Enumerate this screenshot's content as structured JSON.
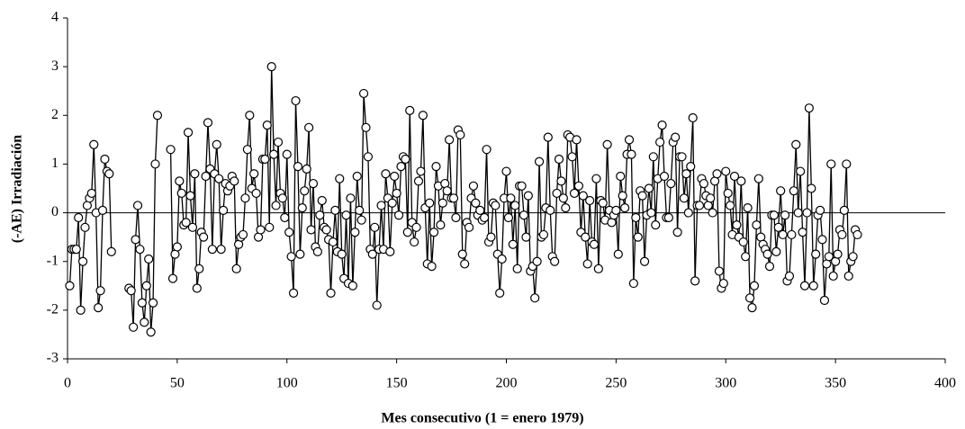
{
  "chart_data": {
    "type": "line",
    "xlabel": "Mes consecutivo (1 = enero 1979)",
    "ylabel": "(-AE) Irradiación",
    "color": "#000000",
    "xlim": [
      0,
      400
    ],
    "xticks": [
      0,
      50,
      100,
      150,
      200,
      250,
      300,
      350,
      400
    ],
    "ylim": [
      -3,
      4
    ],
    "yticks": [
      -3,
      -2,
      -1,
      0,
      1,
      2,
      3,
      4
    ],
    "x": [
      1,
      2,
      3,
      4,
      5,
      6,
      7,
      8,
      9,
      10,
      11,
      12,
      13,
      14,
      15,
      16,
      17,
      18,
      19,
      20,
      21,
      22,
      23,
      24,
      25,
      26,
      27,
      28,
      29,
      30,
      31,
      32,
      33,
      34,
      35,
      36,
      37,
      38,
      39,
      40,
      41,
      42,
      43,
      44,
      45,
      46,
      47,
      48,
      49,
      50,
      51,
      52,
      53,
      54,
      55,
      56,
      57,
      58,
      59,
      60,
      61,
      62,
      63,
      64,
      65,
      66,
      67,
      68,
      69,
      70,
      71,
      72,
      73,
      74,
      75,
      76,
      77,
      78,
      79,
      80,
      81,
      82,
      83,
      84,
      85,
      86,
      87,
      88,
      89,
      90,
      91,
      92,
      93,
      94,
      95,
      96,
      97,
      98,
      99,
      100,
      101,
      102,
      103,
      104,
      105,
      106,
      107,
      108,
      109,
      110,
      111,
      112,
      113,
      114,
      115,
      116,
      117,
      118,
      119,
      120,
      121,
      122,
      123,
      124,
      125,
      126,
      127,
      128,
      129,
      130,
      131,
      132,
      133,
      134,
      135,
      136,
      137,
      138,
      139,
      140,
      141,
      142,
      143,
      144,
      145,
      146,
      147,
      148,
      149,
      150,
      151,
      152,
      153,
      154,
      155,
      156,
      157,
      158,
      159,
      160,
      161,
      162,
      163,
      164,
      165,
      166,
      167,
      168,
      169,
      170,
      171,
      172,
      173,
      174,
      175,
      176,
      177,
      178,
      179,
      180,
      181,
      182,
      183,
      184,
      185,
      186,
      187,
      188,
      189,
      190,
      191,
      192,
      193,
      194,
      195,
      196,
      197,
      198,
      199,
      200,
      201,
      202,
      203,
      204,
      205,
      206,
      207,
      208,
      209,
      210,
      211,
      212,
      213,
      214,
      215,
      216,
      217,
      218,
      219,
      220,
      221,
      222,
      223,
      224,
      225,
      226,
      227,
      228,
      229,
      230,
      231,
      232,
      233,
      234,
      235,
      236,
      237,
      238,
      239,
      240,
      241,
      242,
      243,
      244,
      245,
      246,
      247,
      248,
      249,
      250,
      251,
      252,
      253,
      254,
      255,
      256,
      257,
      258,
      259,
      260,
      261,
      262,
      263,
      264,
      265,
      266,
      267,
      268,
      269,
      270,
      271,
      272,
      273,
      274,
      275,
      276,
      277,
      278,
      279,
      280,
      281,
      282,
      283,
      284,
      285,
      286,
      287,
      288,
      289,
      290,
      291,
      292,
      293,
      294,
      295,
      296,
      297,
      298,
      299,
      300,
      301,
      302,
      303,
      304,
      305,
      306,
      307,
      308,
      309,
      310,
      311,
      312,
      313,
      314,
      315,
      316,
      317,
      318,
      319,
      320,
      321,
      322,
      323,
      324,
      325,
      326,
      327,
      328,
      329,
      330,
      331,
      332,
      333,
      334,
      335,
      336,
      337,
      338,
      339,
      340,
      341,
      342,
      343,
      344,
      345,
      346,
      347,
      348,
      349,
      350,
      351,
      352,
      353,
      354,
      355,
      356,
      357,
      358,
      359,
      360
    ],
    "values": [
      -1.5,
      -0.75,
      -0.75,
      -0.75,
      -0.1,
      -2.0,
      -1.0,
      -0.3,
      0.15,
      0.3,
      0.4,
      1.4,
      0.0,
      -1.95,
      -1.6,
      0.05,
      1.1,
      0.85,
      0.8,
      -0.8,
      null,
      null,
      null,
      null,
      null,
      null,
      null,
      -1.55,
      -1.6,
      -2.35,
      -0.55,
      0.15,
      -0.75,
      -1.85,
      -2.25,
      -1.5,
      -0.95,
      -2.45,
      -1.85,
      1.0,
      2.0,
      null,
      null,
      null,
      null,
      null,
      1.3,
      -1.35,
      -0.85,
      -0.7,
      0.65,
      0.4,
      -0.25,
      -0.2,
      1.65,
      0.35,
      -0.3,
      0.8,
      -1.55,
      -1.15,
      -0.4,
      -0.5,
      0.75,
      1.85,
      0.9,
      -0.75,
      0.8,
      1.4,
      0.7,
      -0.75,
      0.05,
      0.6,
      0.45,
      0.55,
      0.75,
      0.65,
      -1.15,
      -0.65,
      -0.5,
      -0.45,
      0.3,
      1.3,
      2.0,
      0.5,
      0.8,
      0.4,
      -0.5,
      -0.35,
      1.1,
      1.1,
      1.8,
      -0.3,
      3.0,
      1.2,
      0.15,
      1.45,
      0.4,
      0.3,
      -0.1,
      1.2,
      -0.4,
      -0.9,
      -1.65,
      2.3,
      0.95,
      -0.85,
      0.1,
      0.45,
      0.9,
      1.75,
      -0.35,
      0.6,
      -0.7,
      -0.8,
      -0.05,
      0.25,
      -0.3,
      -0.35,
      -0.55,
      -1.65,
      -0.6,
      0.05,
      -0.8,
      0.7,
      -0.85,
      -1.35,
      -0.05,
      -1.45,
      0.3,
      -1.5,
      -0.4,
      0.75,
      0.05,
      -0.15,
      2.45,
      1.75,
      1.15,
      -0.75,
      -0.85,
      -0.3,
      -1.9,
      -0.75,
      0.15,
      -0.75,
      0.8,
      0.3,
      -0.8,
      0.2,
      0.75,
      0.4,
      -0.05,
      0.95,
      1.15,
      1.1,
      -0.4,
      2.1,
      -0.2,
      -0.6,
      -0.3,
      0.65,
      0.85,
      2.0,
      0.1,
      -1.05,
      0.2,
      -1.1,
      -0.4,
      0.95,
      0.55,
      -0.25,
      0.2,
      0.6,
      0.45,
      1.5,
      0.3,
      0.3,
      -0.1,
      1.7,
      1.6,
      -0.85,
      -1.05,
      -0.2,
      -0.3,
      0.3,
      0.55,
      0.2,
      -0.05,
      0.05,
      -0.15,
      -0.1,
      1.3,
      -0.6,
      -0.5,
      0.2,
      0.15,
      -0.85,
      -1.65,
      -0.95,
      0.3,
      0.85,
      -0.1,
      0.3,
      -0.65,
      0.15,
      -1.15,
      0.55,
      0.55,
      -0.05,
      -0.5,
      0.35,
      -1.2,
      -1.1,
      -1.75,
      -1.0,
      1.05,
      -0.5,
      -0.45,
      0.1,
      1.55,
      0.05,
      -0.9,
      -1.0,
      0.4,
      1.1,
      0.65,
      0.3,
      0.1,
      1.6,
      1.55,
      1.15,
      0.4,
      1.5,
      0.55,
      -0.4,
      0.35,
      -0.5,
      -1.05,
      0.25,
      -0.6,
      -0.65,
      0.7,
      -1.15,
      0.25,
      0.2,
      -0.15,
      1.4,
      0.05,
      -0.2,
      -0.05,
      0.05,
      -0.85,
      0.75,
      0.35,
      0.1,
      1.2,
      1.5,
      1.2,
      -1.45,
      -0.1,
      -0.5,
      0.45,
      0.35,
      -1.0,
      -0.05,
      0.5,
      0.0,
      1.15,
      -0.25,
      0.7,
      1.45,
      1.8,
      0.75,
      -0.1,
      -0.1,
      0.6,
      1.45,
      1.55,
      -0.4,
      1.15,
      1.15,
      0.3,
      0.8,
      0.0,
      0.95,
      1.95,
      -1.4,
      0.15,
      0.15,
      0.7,
      0.6,
      0.35,
      0.15,
      0.3,
      0.0,
      0.65,
      0.8,
      -1.2,
      -1.55,
      -1.45,
      0.85,
      0.4,
      0.15,
      -0.45,
      0.75,
      -0.25,
      -0.5,
      0.65,
      -0.6,
      -0.9,
      0.1,
      -1.75,
      -1.95,
      -1.5,
      -0.25,
      0.7,
      -0.5,
      -0.65,
      -0.75,
      -0.85,
      -1.1,
      -0.05,
      -0.05,
      -0.8,
      -0.3,
      0.45,
      -0.45,
      -0.05,
      -1.4,
      -1.3,
      -0.45,
      0.45,
      1.4,
      0.0,
      0.85,
      -0.4,
      -1.5,
      0.0,
      2.15,
      0.5,
      -1.5,
      -0.85,
      -0.05,
      0.05,
      -0.55,
      -1.8,
      -1.05,
      -0.9,
      1.0,
      -1.3,
      -1.0,
      -0.85,
      -0.35,
      -0.45,
      0.05,
      1.0,
      -1.3,
      -1.0,
      -0.9,
      -0.35,
      -0.45
    ]
  }
}
